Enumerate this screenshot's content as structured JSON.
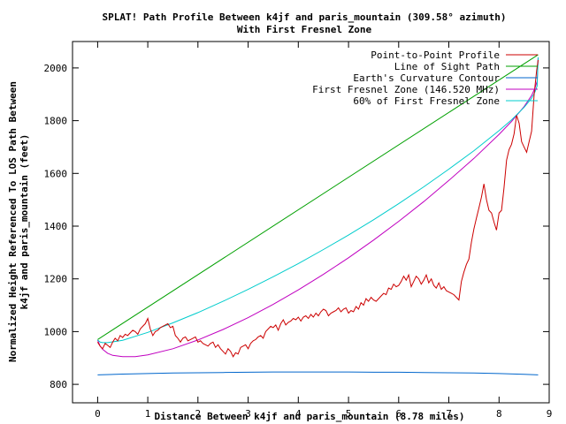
{
  "chart_data": {
    "type": "line",
    "title": "SPLAT! Path Profile Between k4jf and paris_mountain (309.58° azimuth)",
    "subtitle": "With First Fresnel Zone",
    "xlabel": "Distance Between k4jf and paris_mountain (8.78 miles)",
    "ylabel_line1": "Normalized Height Referenced To LOS Path Between",
    "ylabel_line2": "k4jf and paris_mountain (feet)",
    "xlim": [
      -0.5,
      9
    ],
    "ylim": [
      730,
      2100
    ],
    "x_ticks": [
      0,
      1,
      2,
      3,
      4,
      5,
      6,
      7,
      8,
      9
    ],
    "x_tick_labels": [
      "0",
      "1",
      "2",
      "3",
      "4",
      "5",
      "6",
      "7",
      "8",
      "9"
    ],
    "y_ticks": [
      800,
      1000,
      1200,
      1400,
      1600,
      1800,
      2000
    ],
    "y_tick_labels": [
      "800",
      "1000",
      "1200",
      "1400",
      "1600",
      "1800",
      "2000"
    ],
    "grid": false,
    "legend_position": "top-right",
    "series": [
      {
        "name": "Point-to-Point Profile",
        "color": "#cc0000",
        "x": [
          0,
          0.05,
          0.1,
          0.15,
          0.2,
          0.25,
          0.3,
          0.35,
          0.4,
          0.45,
          0.5,
          0.55,
          0.6,
          0.65,
          0.7,
          0.75,
          0.8,
          0.85,
          0.9,
          0.95,
          1.0,
          1.05,
          1.1,
          1.15,
          1.2,
          1.25,
          1.3,
          1.35,
          1.4,
          1.45,
          1.5,
          1.55,
          1.6,
          1.65,
          1.7,
          1.75,
          1.8,
          1.85,
          1.9,
          1.95,
          2.0,
          2.05,
          2.1,
          2.15,
          2.2,
          2.25,
          2.3,
          2.35,
          2.4,
          2.45,
          2.5,
          2.55,
          2.6,
          2.65,
          2.7,
          2.75,
          2.8,
          2.85,
          2.9,
          2.95,
          3.0,
          3.05,
          3.1,
          3.15,
          3.2,
          3.25,
          3.3,
          3.35,
          3.4,
          3.45,
          3.5,
          3.55,
          3.6,
          3.65,
          3.7,
          3.75,
          3.8,
          3.85,
          3.9,
          3.95,
          4.0,
          4.05,
          4.1,
          4.15,
          4.2,
          4.25,
          4.3,
          4.35,
          4.4,
          4.45,
          4.5,
          4.55,
          4.6,
          4.65,
          4.7,
          4.75,
          4.8,
          4.85,
          4.9,
          4.95,
          5.0,
          5.05,
          5.1,
          5.15,
          5.2,
          5.25,
          5.3,
          5.35,
          5.4,
          5.45,
          5.5,
          5.55,
          5.6,
          5.65,
          5.7,
          5.75,
          5.8,
          5.85,
          5.9,
          5.95,
          6.0,
          6.05,
          6.1,
          6.15,
          6.2,
          6.25,
          6.3,
          6.35,
          6.4,
          6.45,
          6.5,
          6.55,
          6.6,
          6.65,
          6.7,
          6.75,
          6.8,
          6.85,
          6.9,
          6.95,
          7.0,
          7.05,
          7.1,
          7.15,
          7.2,
          7.25,
          7.3,
          7.35,
          7.4,
          7.45,
          7.5,
          7.55,
          7.6,
          7.65,
          7.7,
          7.75,
          7.8,
          7.85,
          7.9,
          7.95,
          8.0,
          8.05,
          8.1,
          8.15,
          8.2,
          8.25,
          8.3,
          8.35,
          8.4,
          8.45,
          8.5,
          8.55,
          8.6,
          8.65,
          8.7,
          8.75,
          8.78
        ],
        "y": [
          960,
          945,
          935,
          955,
          948,
          940,
          960,
          975,
          965,
          985,
          978,
          990,
          985,
          995,
          1005,
          1000,
          990,
          1010,
          1020,
          1030,
          1050,
          1010,
          985,
          1000,
          1005,
          1015,
          1020,
          1025,
          1030,
          1015,
          1020,
          985,
          975,
          960,
          975,
          980,
          965,
          970,
          975,
          980,
          960,
          965,
          955,
          950,
          945,
          955,
          960,
          940,
          950,
          935,
          925,
          915,
          935,
          925,
          905,
          920,
          915,
          940,
          945,
          950,
          935,
          955,
          965,
          970,
          980,
          985,
          975,
          1000,
          1010,
          1020,
          1015,
          1025,
          1005,
          1030,
          1045,
          1025,
          1035,
          1040,
          1050,
          1045,
          1055,
          1040,
          1055,
          1060,
          1050,
          1065,
          1055,
          1070,
          1060,
          1075,
          1085,
          1080,
          1060,
          1070,
          1075,
          1080,
          1090,
          1075,
          1085,
          1090,
          1070,
          1080,
          1075,
          1095,
          1085,
          1110,
          1100,
          1125,
          1115,
          1130,
          1120,
          1115,
          1125,
          1135,
          1145,
          1140,
          1165,
          1160,
          1180,
          1170,
          1175,
          1190,
          1210,
          1195,
          1215,
          1170,
          1190,
          1210,
          1200,
          1180,
          1195,
          1215,
          1185,
          1200,
          1175,
          1165,
          1185,
          1160,
          1170,
          1155,
          1150,
          1145,
          1140,
          1130,
          1120,
          1190,
          1225,
          1255,
          1275,
          1340,
          1390,
          1430,
          1470,
          1510,
          1560,
          1500,
          1460,
          1450,
          1415,
          1385,
          1450,
          1460,
          1545,
          1650,
          1690,
          1710,
          1750,
          1820,
          1790,
          1720,
          1700,
          1680,
          1720,
          1760,
          1900,
          1990,
          2030
        ]
      },
      {
        "name": "Line of Sight Path",
        "color": "#00a000",
        "x": [
          0,
          8.78
        ],
        "y": [
          970,
          2050
        ]
      },
      {
        "name": "Earth's Curvature Contour",
        "color": "#0066cc",
        "x": [
          0,
          0.5,
          1.0,
          1.5,
          2.0,
          2.5,
          3.0,
          3.5,
          4.0,
          4.39,
          5.0,
          5.5,
          6.0,
          6.5,
          7.0,
          7.5,
          8.0,
          8.5,
          8.78
        ],
        "y": [
          836,
          839,
          841,
          843,
          844,
          845,
          846,
          847,
          847,
          847,
          847,
          846,
          846,
          845,
          844,
          843,
          841,
          838,
          836
        ]
      },
      {
        "name": "First Fresnel Zone (146.520 MHz)",
        "color": "#c000c0",
        "x": [
          0,
          0.05,
          0.1,
          0.2,
          0.3,
          0.5,
          0.75,
          1.0,
          1.5,
          2.0,
          2.5,
          3.0,
          3.5,
          4.0,
          4.5,
          5.0,
          5.5,
          6.0,
          6.5,
          7.0,
          7.5,
          8.0,
          8.25,
          8.5,
          8.65,
          8.72,
          8.76,
          8.78
        ],
        "y": [
          968,
          945,
          933,
          918,
          910,
          905,
          905,
          912,
          935,
          968,
          1008,
          1053,
          1103,
          1158,
          1217,
          1280,
          1347,
          1418,
          1493,
          1573,
          1657,
          1748,
          1797,
          1853,
          1895,
          1925,
          1950,
          2040
        ]
      },
      {
        "name": "60% of First Fresnel Zone",
        "color": "#00cccc",
        "x": [
          0,
          0.05,
          0.1,
          0.2,
          0.5,
          1.0,
          1.5,
          2.0,
          2.5,
          3.0,
          3.5,
          4.0,
          4.5,
          5.0,
          5.5,
          6.0,
          6.5,
          7.0,
          7.5,
          8.0,
          8.25,
          8.5,
          8.65,
          8.72,
          8.76,
          8.78
        ],
        "y": [
          968,
          960,
          958,
          958,
          967,
          997,
          1033,
          1072,
          1115,
          1160,
          1208,
          1258,
          1311,
          1366,
          1424,
          1485,
          1549,
          1616,
          1686,
          1762,
          1803,
          1850,
          1885,
          1910,
          1932,
          2040
        ]
      }
    ]
  }
}
